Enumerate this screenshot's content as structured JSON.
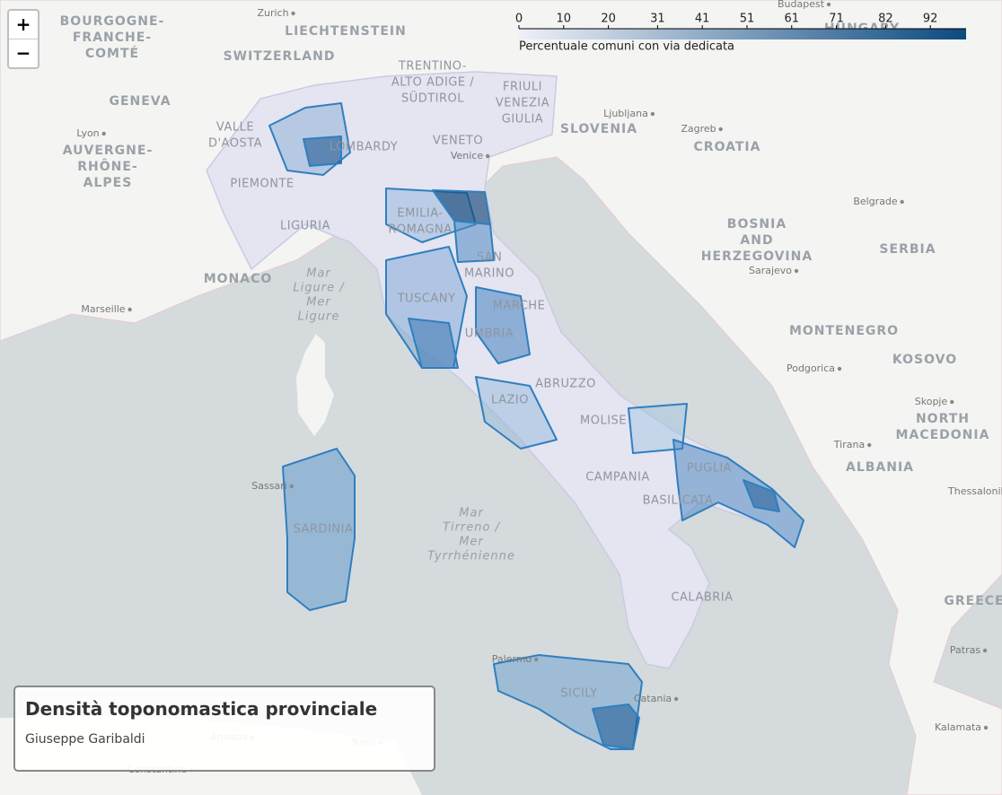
{
  "zoom": {
    "in": "+",
    "out": "−"
  },
  "legend": {
    "label": "Percentuale comuni con via dedicata",
    "ticks": [
      0,
      10,
      20,
      31,
      41,
      51,
      61,
      71,
      82,
      92
    ],
    "range": [
      0,
      100
    ],
    "colors": [
      "#eef0f8",
      "#0b4a80"
    ]
  },
  "info": {
    "title": "Densità toponomastica provinciale",
    "subtitle": "Giuseppe Garibaldi"
  },
  "map": {
    "labels": [
      [
        "Zurich"
      ],
      [
        "LIECHTENSTEIN"
      ],
      [
        "BOURGOGNE-",
        "FRANCHE-",
        "COMTÉ"
      ],
      [
        "SWITZERLAND"
      ],
      [
        "GENEVA"
      ],
      [
        "VALLE",
        "D'AOSTA"
      ],
      [
        "Lyon"
      ],
      [
        "AUVERGNE-",
        "RHÔNE-",
        "ALPES"
      ],
      [
        "TRENTINO-",
        "ALTO ADIGE /",
        "SÜDTIROL"
      ],
      [
        "FRIULI",
        "VENEZIA",
        "GIULIA"
      ],
      [
        "Ljubljana"
      ],
      [
        "SLOVENIA"
      ],
      [
        "Zagreb"
      ],
      [
        "CROATIA"
      ],
      [
        "Budapest"
      ],
      [
        "HUNGARY"
      ],
      [
        "LOMBARDY"
      ],
      [
        "VENETO"
      ],
      [
        "Venice"
      ],
      [
        "PIEMONTE"
      ],
      [
        "EMILIA-",
        "ROMAGNA"
      ],
      [
        "LIGURIA"
      ],
      [
        "Belgrade"
      ],
      [
        "BOSNIA",
        "AND",
        "HERZEGOVINA"
      ],
      [
        "SERBIA"
      ],
      [
        "Sarajevo"
      ],
      [
        "SAN",
        "MARINO"
      ],
      [
        "MONACO"
      ],
      [
        "Mar",
        "Ligure /",
        "Mer",
        "Ligure"
      ],
      [
        "Marseille"
      ],
      [
        "TUSCANY"
      ],
      [
        "MARCHE"
      ],
      [
        "UMBRIA"
      ],
      [
        "MONTENEGRO"
      ],
      [
        "Podgorica"
      ],
      [
        "KOSOVO"
      ],
      [
        "ABRUZZO"
      ],
      [
        "LAZIO"
      ],
      [
        "Skopje"
      ],
      [
        "MOLISE"
      ],
      [
        "NORTH",
        "MACEDONIA"
      ],
      [
        "Tirana"
      ],
      [
        "ALBANIA"
      ],
      [
        "PUGLIA"
      ],
      [
        "CAMPANIA"
      ],
      [
        "Sassari"
      ],
      [
        "Thessaloniki"
      ],
      [
        "BASILICATA"
      ],
      [
        "Mar",
        "Tirreno /",
        "Mer",
        "Tyrrhénienne"
      ],
      [
        "SARDINIA"
      ],
      [
        "CALABRIA"
      ],
      [
        "GREECE"
      ],
      [
        "Patras"
      ],
      [
        "Palermo"
      ],
      [
        "SICILY"
      ],
      [
        "Catania"
      ],
      [
        "Kalamata"
      ],
      [
        "Annaba"
      ],
      [
        "Tunis"
      ],
      [
        "Constantine"
      ]
    ]
  }
}
